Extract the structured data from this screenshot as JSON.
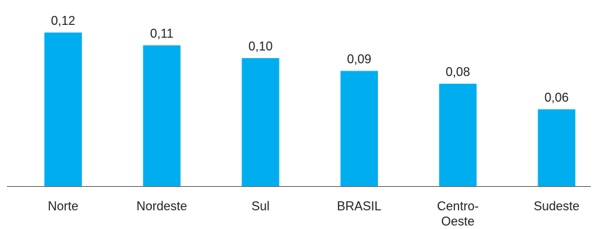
{
  "chart_data": {
    "type": "bar",
    "categories": [
      [
        "Norte"
      ],
      [
        "Nordeste"
      ],
      [
        "Sul"
      ],
      [
        "BRASIL"
      ],
      [
        "Centro-",
        "Oeste"
      ],
      [
        "Sudeste"
      ]
    ],
    "values": [
      0.12,
      0.11,
      0.1,
      0.09,
      0.08,
      0.06
    ],
    "value_labels": [
      "0,12",
      "0,11",
      "0,10",
      "0,09",
      "0,08",
      "0,06"
    ],
    "ylim": [
      0,
      0.14
    ],
    "grid": false,
    "legend": "none",
    "title": "",
    "xlabel": "",
    "ylabel": ""
  },
  "colors": {
    "bar": "#00AEEF",
    "axis": "#555555",
    "text": "#222222"
  }
}
